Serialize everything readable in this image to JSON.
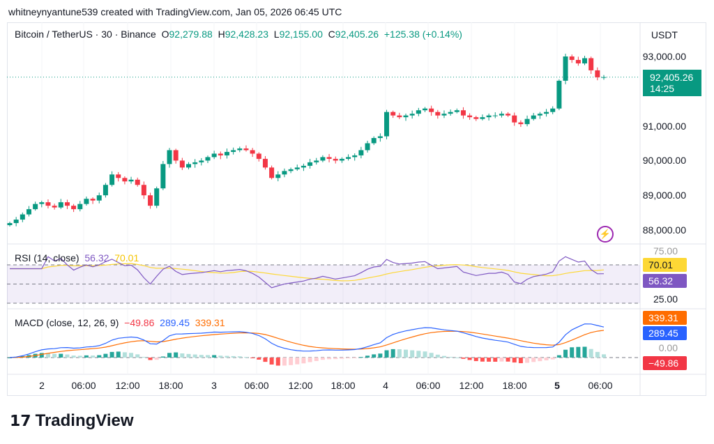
{
  "credit": "whitneynyantune539 created with TradingView.com, Jan 05, 2026 06:45 UTC",
  "legend": {
    "symbol": "Bitcoin / TetherUS · 30 · Binance",
    "o_label": "O",
    "o": "92,279.88",
    "h_label": "H",
    "h": "92,428.23",
    "l_label": "L",
    "l": "92,155.00",
    "c_label": "C",
    "c": "92,405.26",
    "change": "+125.38 (+0.14%)"
  },
  "currency": "USDT",
  "price_axis": [
    "93,000.00",
    "91,000.00",
    "90,000.00",
    "89,000.00",
    "88,000.00"
  ],
  "last_price": {
    "value": "92,405.26",
    "countdown": "14:25"
  },
  "rsi": {
    "title": "RSI (14, close)",
    "value": "56.32",
    "ma": "70.01",
    "levels": [
      "75.00",
      "25.00"
    ]
  },
  "macd": {
    "title": "MACD (close, 12, 26, 9)",
    "hist": "−49.86",
    "macd": "289.45",
    "signal": "339.31",
    "zero": "0.00"
  },
  "time_axis": [
    "2",
    "06:00",
    "12:00",
    "18:00",
    "3",
    "06:00",
    "12:00",
    "18:00",
    "4",
    "06:00",
    "12:00",
    "18:00",
    "5",
    "06:00"
  ],
  "brand": "TradingView",
  "colors": {
    "up": "#089981",
    "down": "#f23645",
    "rsi": "#7e57c2",
    "rsi_ma": "#fdd835",
    "macd": "#2962ff",
    "signal": "#ff6d00"
  },
  "chart_data": {
    "type": "candlestick",
    "closes": [
      88200,
      88300,
      88450,
      88600,
      88750,
      88800,
      88700,
      88650,
      88800,
      88700,
      88600,
      88750,
      88900,
      88850,
      89000,
      89300,
      89600,
      89500,
      89400,
      89450,
      89300,
      89000,
      88700,
      89200,
      89900,
      90300,
      90000,
      89800,
      89900,
      89950,
      90000,
      90100,
      90200,
      90150,
      90250,
      90300,
      90350,
      90300,
      90200,
      90050,
      89800,
      89500,
      89600,
      89700,
      89750,
      89800,
      89850,
      89950,
      90000,
      90100,
      90050,
      90000,
      90050,
      90100,
      90150,
      90300,
      90500,
      90650,
      90700,
      91400,
      91300,
      91250,
      91300,
      91350,
      91450,
      91500,
      91400,
      91300,
      91350,
      91400,
      91450,
      91300,
      91250,
      91200,
      91250,
      91300,
      91300,
      91350,
      91300,
      91100,
      91050,
      91200,
      91300,
      91350,
      91400,
      91500,
      92300,
      93000,
      92900,
      92800,
      92950,
      92600,
      92400,
      92405
    ]
  }
}
